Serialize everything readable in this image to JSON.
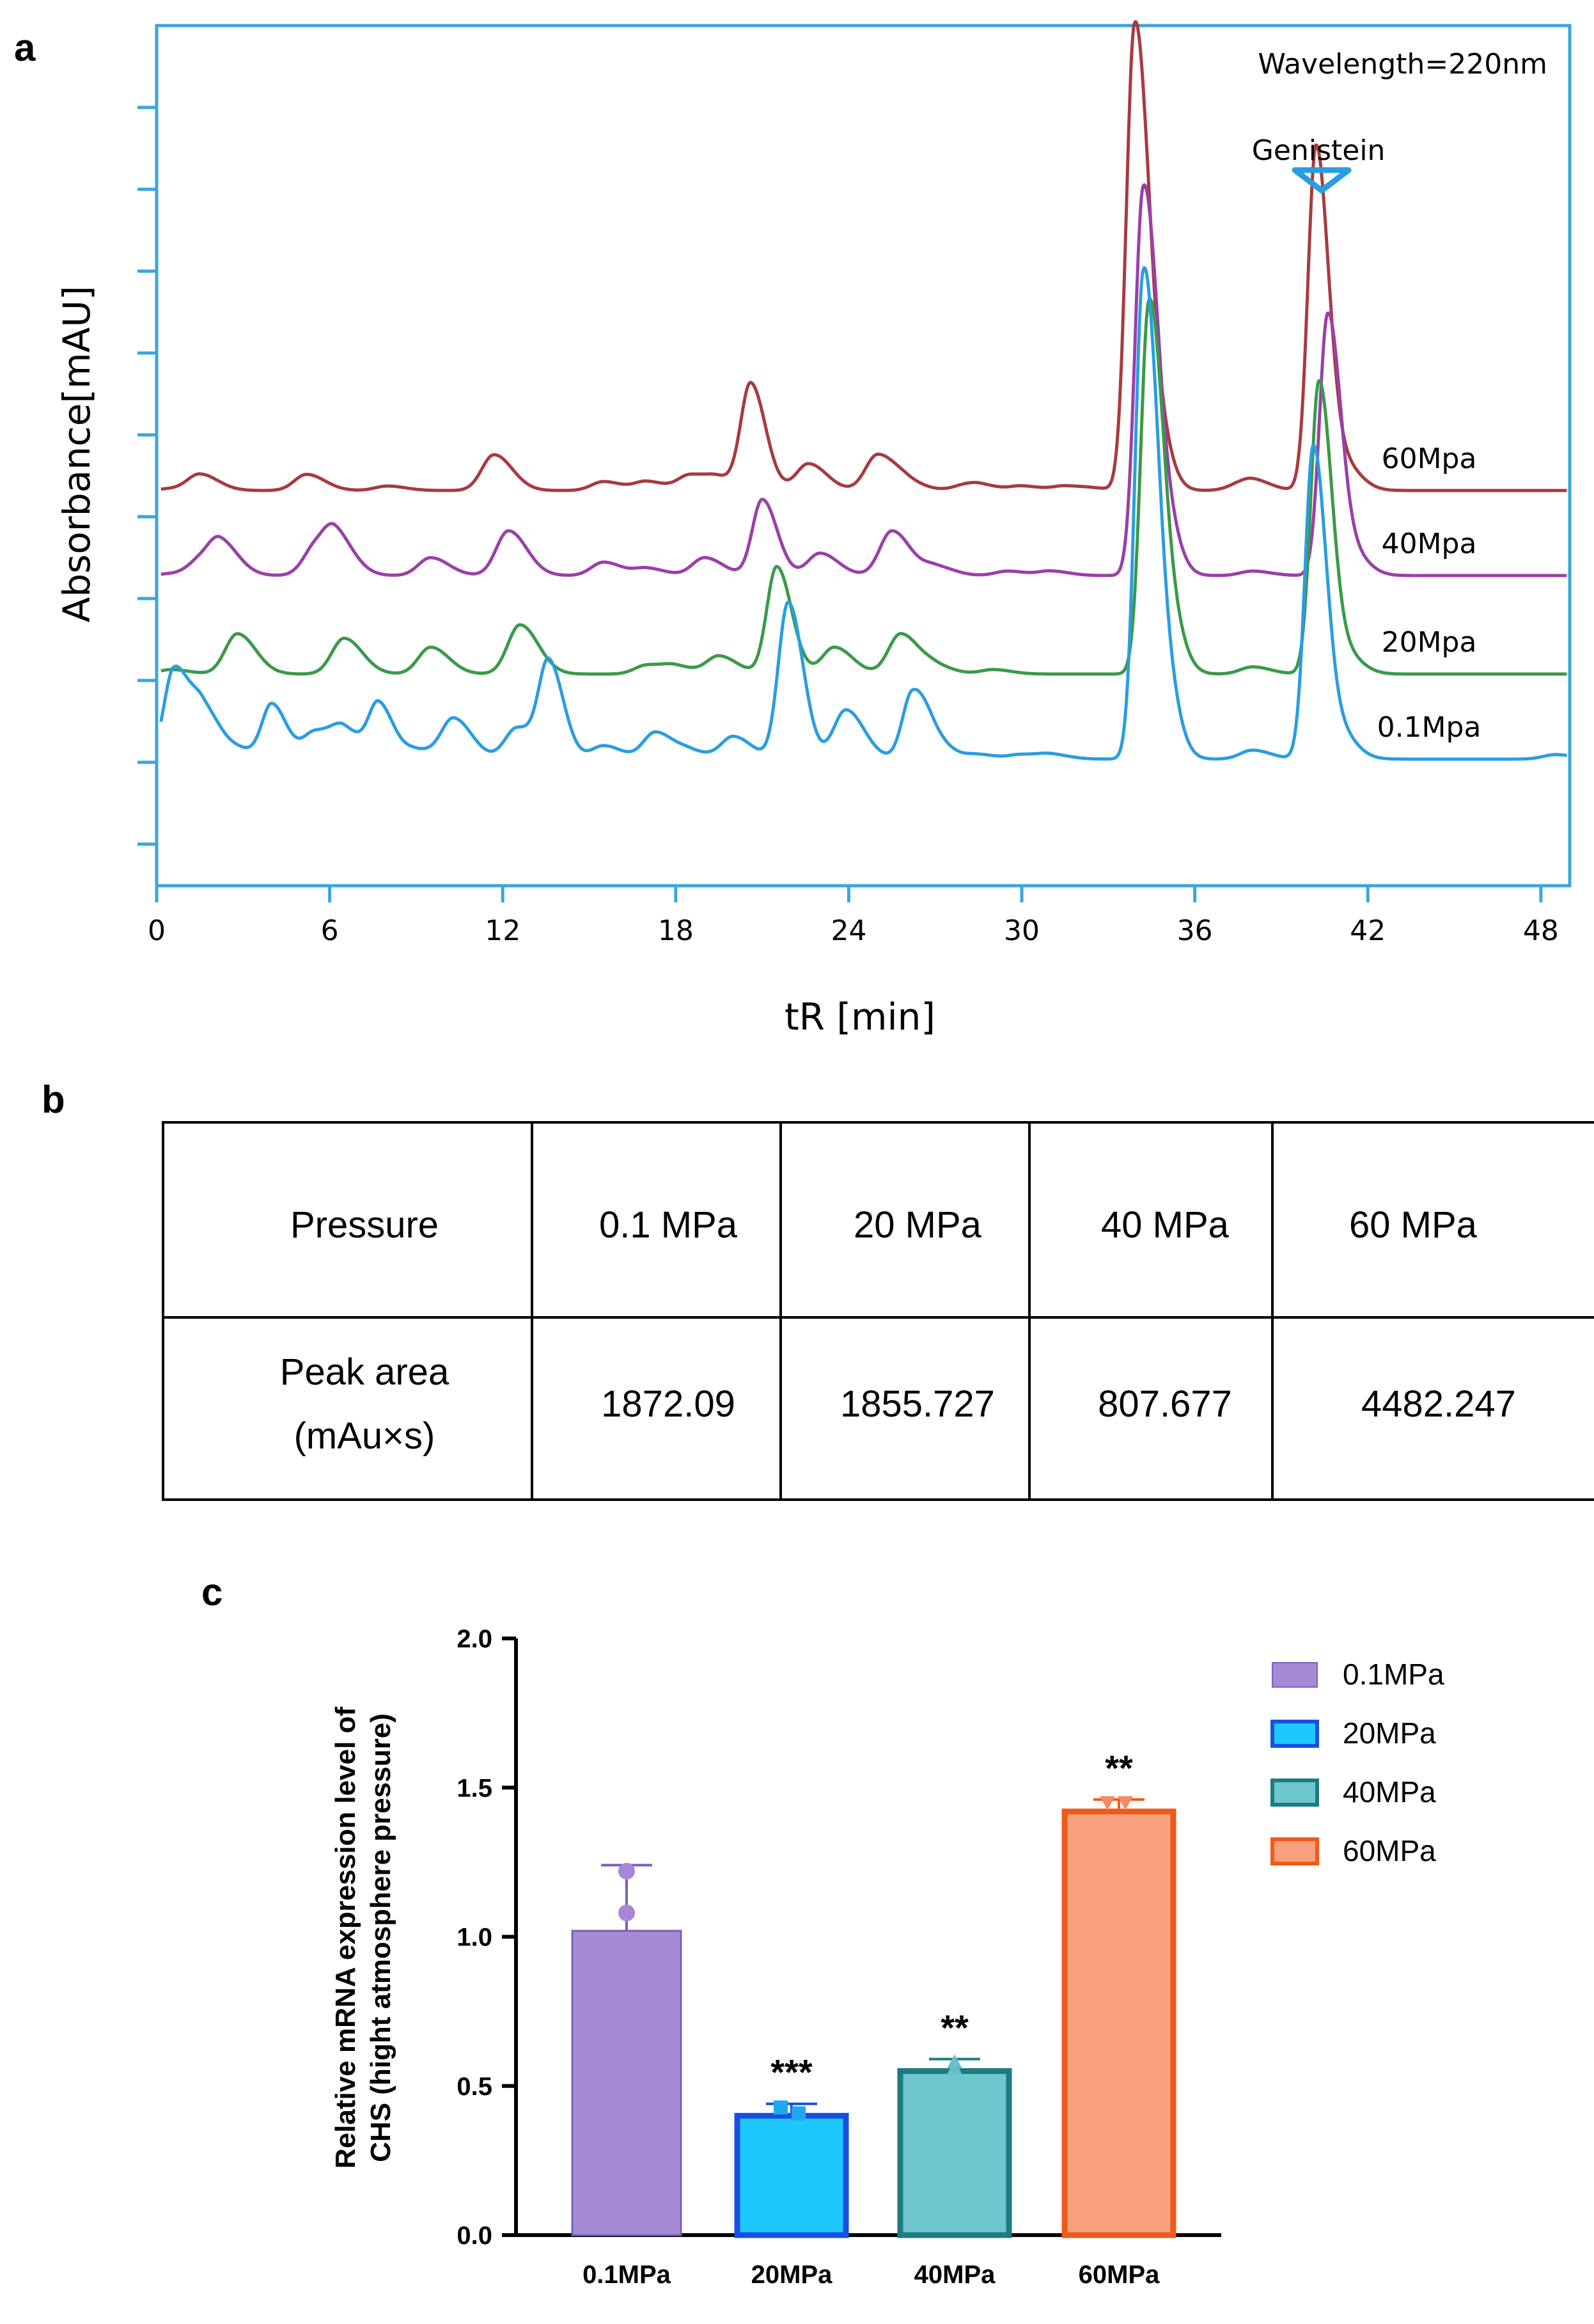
{
  "panels": {
    "a": "a",
    "b": "b",
    "c": "c"
  },
  "chart_data": [
    {
      "type": "line",
      "panel": "a",
      "title": "",
      "annotation": "Wavelength=220nm",
      "peak_marker": {
        "label": "Genistein",
        "x": 40.4
      },
      "xlabel": "tR [min]",
      "ylabel": "Absorbance[mAU]",
      "xlim": [
        0,
        49
      ],
      "xticks": [
        0,
        6,
        12,
        18,
        24,
        30,
        36,
        42,
        48
      ],
      "series": [
        {
          "name": "60Mpa",
          "color": "#a83a3f",
          "baseline": 0.95,
          "x": [
            0.5,
            1.5,
            5.2,
            8,
            11.7,
            15.5,
            17,
            18.5,
            19.5,
            20.6,
            22.6,
            25,
            26,
            28,
            28.5,
            30,
            31.5,
            32.5,
            33.9,
            34.5,
            37.5,
            38,
            40.2,
            41
          ],
          "y": [
            0.02,
            0.18,
            0.18,
            0.05,
            0.4,
            0.1,
            0.1,
            0.17,
            0.12,
            1.18,
            0.3,
            0.4,
            0.08,
            0.05,
            0.05,
            0.05,
            0.05,
            0.02,
            5.0,
            1.0,
            0.05,
            0.1,
            3.8,
            0.35
          ]
        },
        {
          "name": "40Mpa",
          "color": "#9a3fa8",
          "baseline": 0.0,
          "x": [
            0.5,
            1.5,
            2.2,
            5.5,
            6.2,
            9.5,
            12.2,
            15.5,
            17,
            19,
            21,
            23,
            25.5,
            27,
            29.5,
            31,
            34.2,
            34.8,
            38,
            40.6,
            41.2
          ],
          "y": [
            0.02,
            0.15,
            0.35,
            0.3,
            0.4,
            0.2,
            0.5,
            0.15,
            0.08,
            0.2,
            0.85,
            0.25,
            0.5,
            0.1,
            0.05,
            0.05,
            4.15,
            0.9,
            0.05,
            2.8,
            0.35
          ]
        },
        {
          "name": "20Mpa",
          "color": "#3a9a47",
          "baseline": -1.1,
          "x": [
            0.5,
            2.8,
            6.5,
            9.5,
            12.6,
            17,
            18,
            19.5,
            21.5,
            23.5,
            25.8,
            27,
            29,
            34.4,
            35,
            38,
            40.3,
            41
          ],
          "y": [
            0.05,
            0.45,
            0.4,
            0.3,
            0.55,
            0.1,
            0.08,
            0.2,
            1.2,
            0.3,
            0.45,
            0.08,
            0.05,
            4.0,
            0.8,
            0.08,
            3.2,
            0.3
          ]
        },
        {
          "name": "0.1Mpa",
          "color": "#2a9de0",
          "baseline": -2.05,
          "x": [
            0.6,
            1.6,
            3,
            4,
            5.5,
            6.5,
            7.7,
            9,
            10.3,
            12.5,
            13.6,
            15.5,
            17.3,
            18.5,
            20,
            21.9,
            23.9,
            26.2,
            26.9,
            28.5,
            30,
            31,
            34.2,
            34.8,
            38,
            40.1,
            40.8,
            48.5
          ],
          "y": [
            1.0,
            0.55,
            0.08,
            0.6,
            0.3,
            0.3,
            0.6,
            0.1,
            0.45,
            0.35,
            1.05,
            0.15,
            0.3,
            0.08,
            0.25,
            1.75,
            0.55,
            0.72,
            0.2,
            0.05,
            0.05,
            0.05,
            5.2,
            1.2,
            0.1,
            3.4,
            0.4,
            0.05
          ]
        }
      ]
    },
    {
      "type": "table",
      "panel": "b",
      "header": [
        "Pressure",
        "0.1 MPa",
        "20 MPa",
        "40 MPa",
        "60 MPa"
      ],
      "row_label": [
        "Peak area",
        "(mAu×s)"
      ],
      "values": [
        "1872.09",
        "1855.727",
        "807.677",
        "4482.247"
      ]
    },
    {
      "type": "bar",
      "panel": "c",
      "categories": [
        "0.1MPa",
        "20MPa",
        "40MPa",
        "60MPa"
      ],
      "values": [
        1.02,
        0.4,
        0.55,
        1.42
      ],
      "error_upper": [
        1.24,
        0.44,
        0.59,
        1.46
      ],
      "points": [
        [
          1.22,
          1.08
        ],
        [
          0.43,
          0.41
        ],
        [
          0.58,
          0.56
        ],
        [
          1.45,
          1.45
        ]
      ],
      "significance": [
        "",
        "***",
        "**",
        "**"
      ],
      "ylabel_lines": [
        "Relative mRNA expression level of",
        "CHS (hight atmosphere pressure)"
      ],
      "ylim": [
        0,
        2.0
      ],
      "yticks": [
        "0.0",
        "0.5",
        "1.0",
        "1.5",
        "2.0"
      ],
      "legend": [
        "0.1MPa",
        "20MPa",
        "40MPa",
        "60MPa"
      ],
      "colors": {
        "fill": [
          "#a58bd3",
          "#1ec8ff",
          "#6fc7ce",
          "#f8a07e"
        ],
        "edge": [
          "#7b5fb8",
          "#1751e0",
          "#1d7b83",
          "#f05a1a"
        ],
        "point": [
          "#a985d8",
          "#1ea8f0",
          "#63c0cb",
          "#f58a63"
        ]
      }
    }
  ],
  "colors": {
    "frame": "#3aa6dd",
    "marker": "#2a9de0"
  }
}
